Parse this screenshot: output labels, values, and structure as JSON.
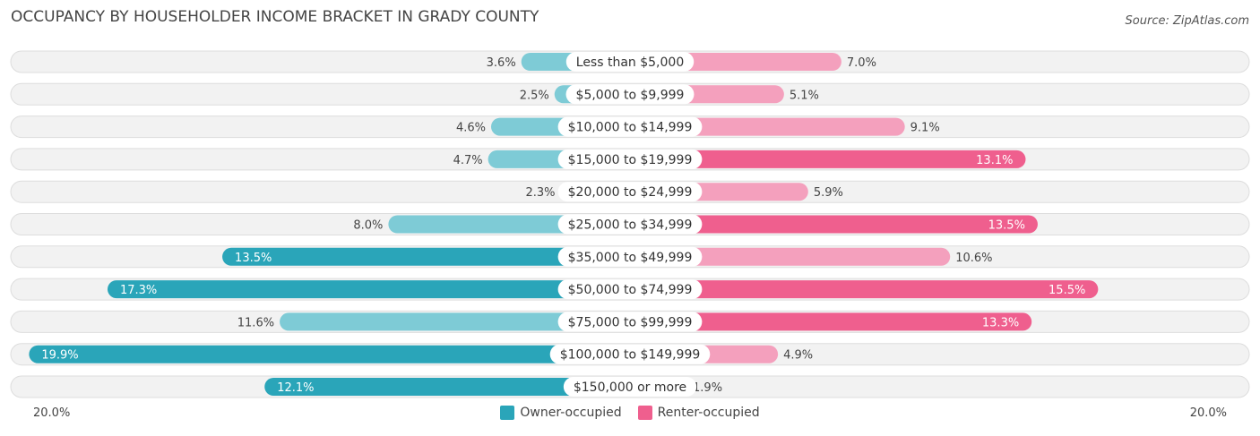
{
  "title": "OCCUPANCY BY HOUSEHOLDER INCOME BRACKET IN GRADY COUNTY",
  "source": "Source: ZipAtlas.com",
  "colors": {
    "owner_light": "#7ecbd6",
    "owner_dark": "#2aa5b9",
    "renter_light": "#f4a0bd",
    "renter_dark": "#ef5f8e",
    "row_bg": "#f2f2f2",
    "row_border": "#dddddd"
  },
  "chart_data": {
    "type": "bar",
    "orientation": "horizontal-diverging",
    "categories": [
      "Less than $5,000",
      "$5,000 to $9,999",
      "$10,000 to $14,999",
      "$15,000 to $19,999",
      "$20,000 to $24,999",
      "$25,000 to $34,999",
      "$35,000 to $49,999",
      "$50,000 to $74,999",
      "$75,000 to $99,999",
      "$100,000 to $149,999",
      "$150,000 or more"
    ],
    "series": [
      {
        "name": "Owner-occupied",
        "values": [
          3.6,
          2.5,
          4.6,
          4.7,
          2.3,
          8.0,
          13.5,
          17.3,
          11.6,
          19.9,
          12.1
        ],
        "labels": [
          "3.6%",
          "2.5%",
          "4.6%",
          "4.7%",
          "2.3%",
          "8.0%",
          "13.5%",
          "17.3%",
          "11.6%",
          "19.9%",
          "12.1%"
        ]
      },
      {
        "name": "Renter-occupied",
        "values": [
          7.0,
          5.1,
          9.1,
          13.1,
          5.9,
          13.5,
          10.6,
          15.5,
          13.3,
          4.9,
          1.9
        ],
        "labels": [
          "7.0%",
          "5.1%",
          "9.1%",
          "13.1%",
          "5.9%",
          "13.5%",
          "10.6%",
          "15.5%",
          "13.3%",
          "4.9%",
          "1.9%"
        ]
      }
    ],
    "xlim": [
      -20,
      20
    ],
    "axis_left_label": "20.0%",
    "axis_right_label": "20.0%",
    "legend": [
      "Owner-occupied",
      "Renter-occupied"
    ],
    "legend_position": "bottom-center"
  }
}
